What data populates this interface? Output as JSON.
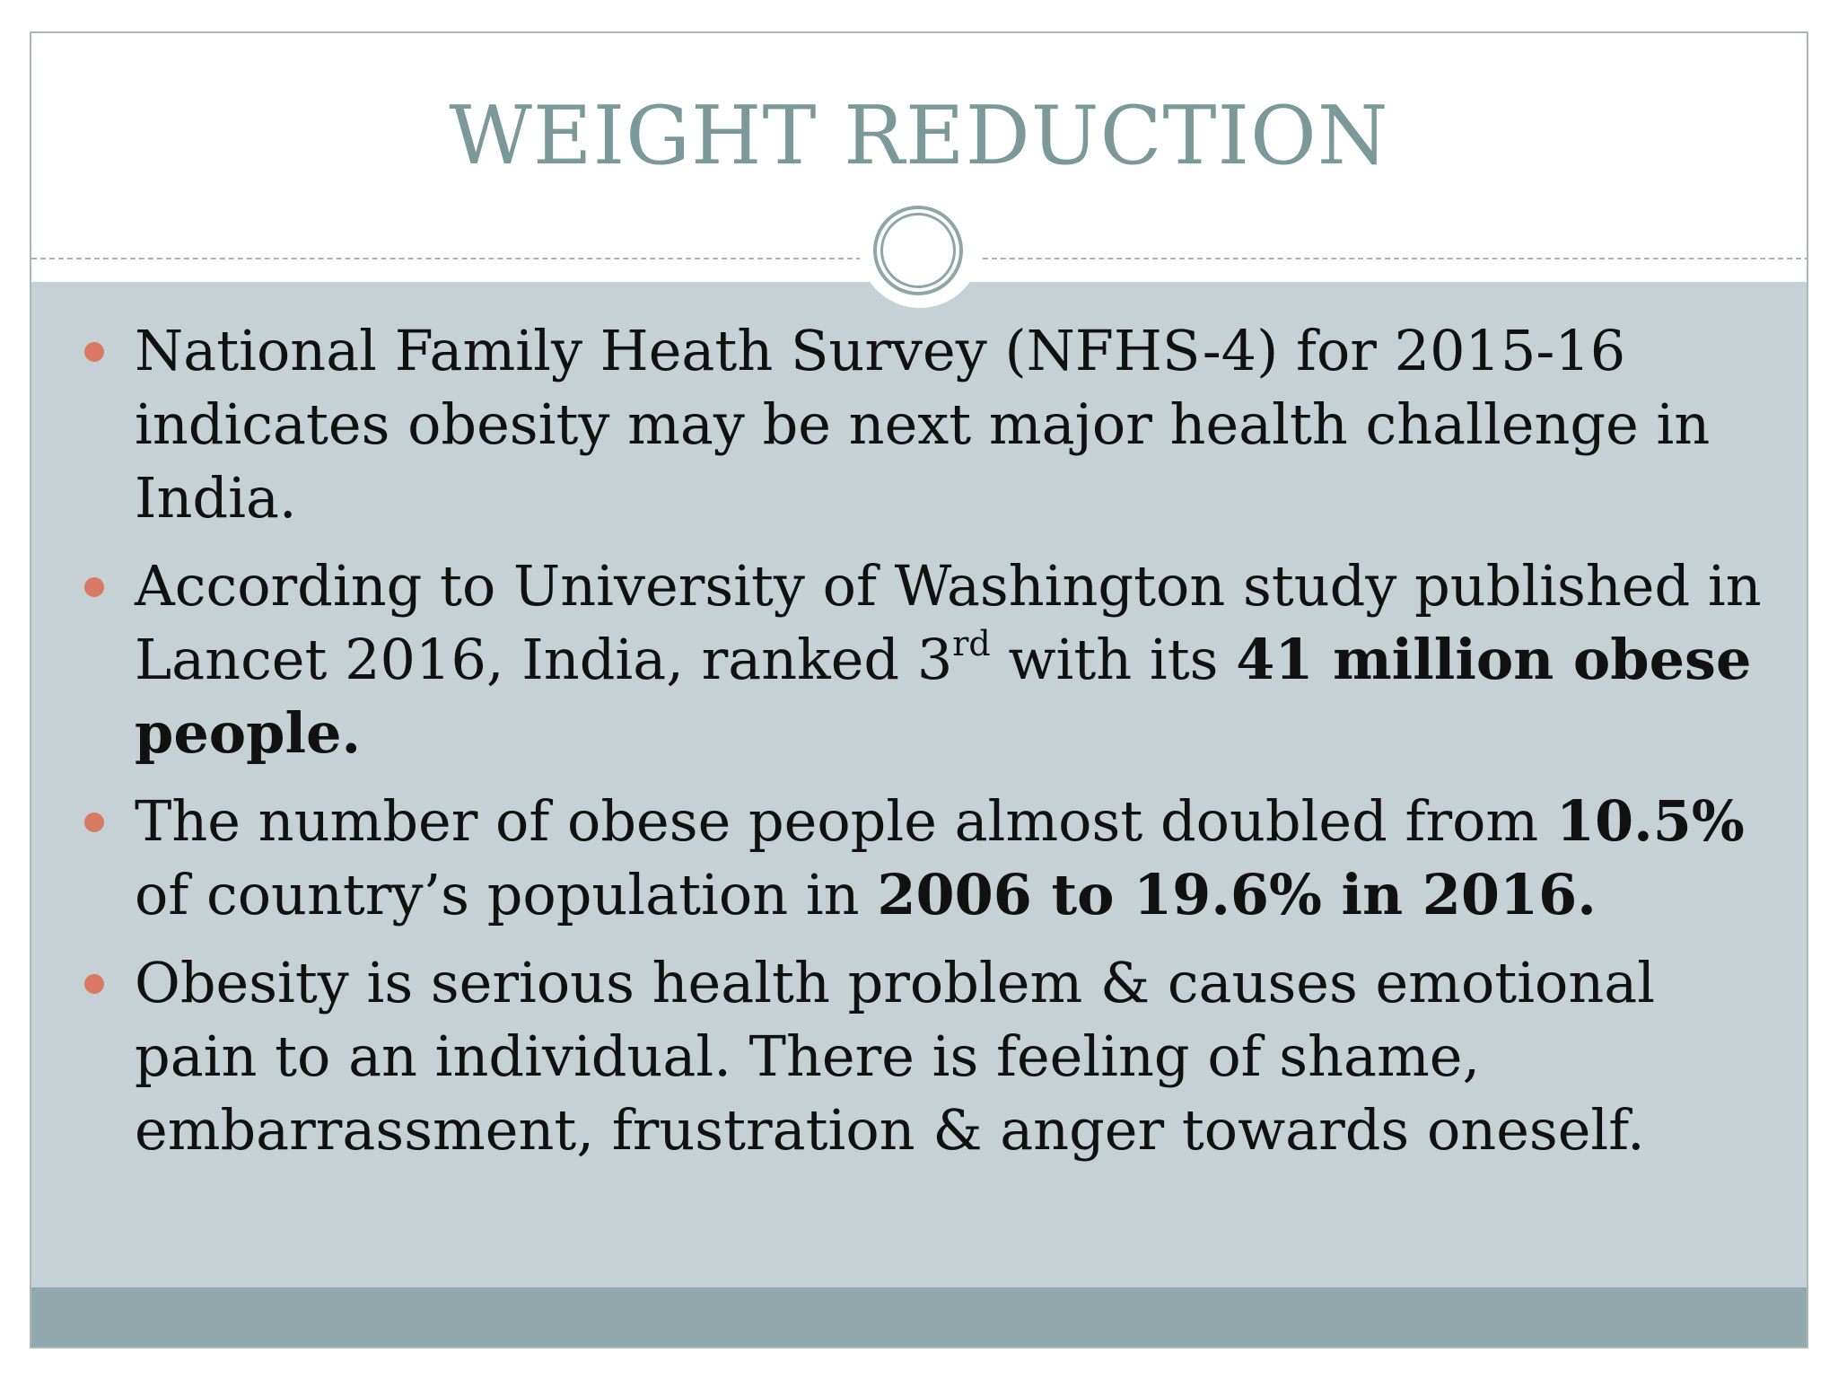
{
  "slide": {
    "title": "WEIGHT REDUCTION",
    "bullets": [
      {
        "text": "National Family Heath Survey (NFHS-4) for 2015-16 indicates obesity may be next major health challenge in India."
      },
      {
        "part1": "According to University of Washington study published in Lancet 2016, India, ranked 3",
        "superscript": "rd",
        "part2": " with its ",
        "bold": "41 million obese people."
      },
      {
        "part1": "The number of obese people almost doubled from ",
        "bold1": "10.5%",
        "part2": " of country’s population in ",
        "bold2": "2006 to 19.6% in 2016."
      },
      {
        "text": "Obesity is serious health problem & causes emotional pain to an individual. There is feeling of shame, embarrassment, frustration & anger towards oneself."
      }
    ]
  },
  "colors": {
    "title": "#7a9998",
    "content_background": "#c5d1d5",
    "footer_band": "#8fa9ac",
    "bullet_marker": "#d97a64",
    "ornament": "#8ea6a8"
  },
  "icons": {
    "ornament": "double-ring-icon",
    "bullet": "bullet-dot-icon"
  }
}
